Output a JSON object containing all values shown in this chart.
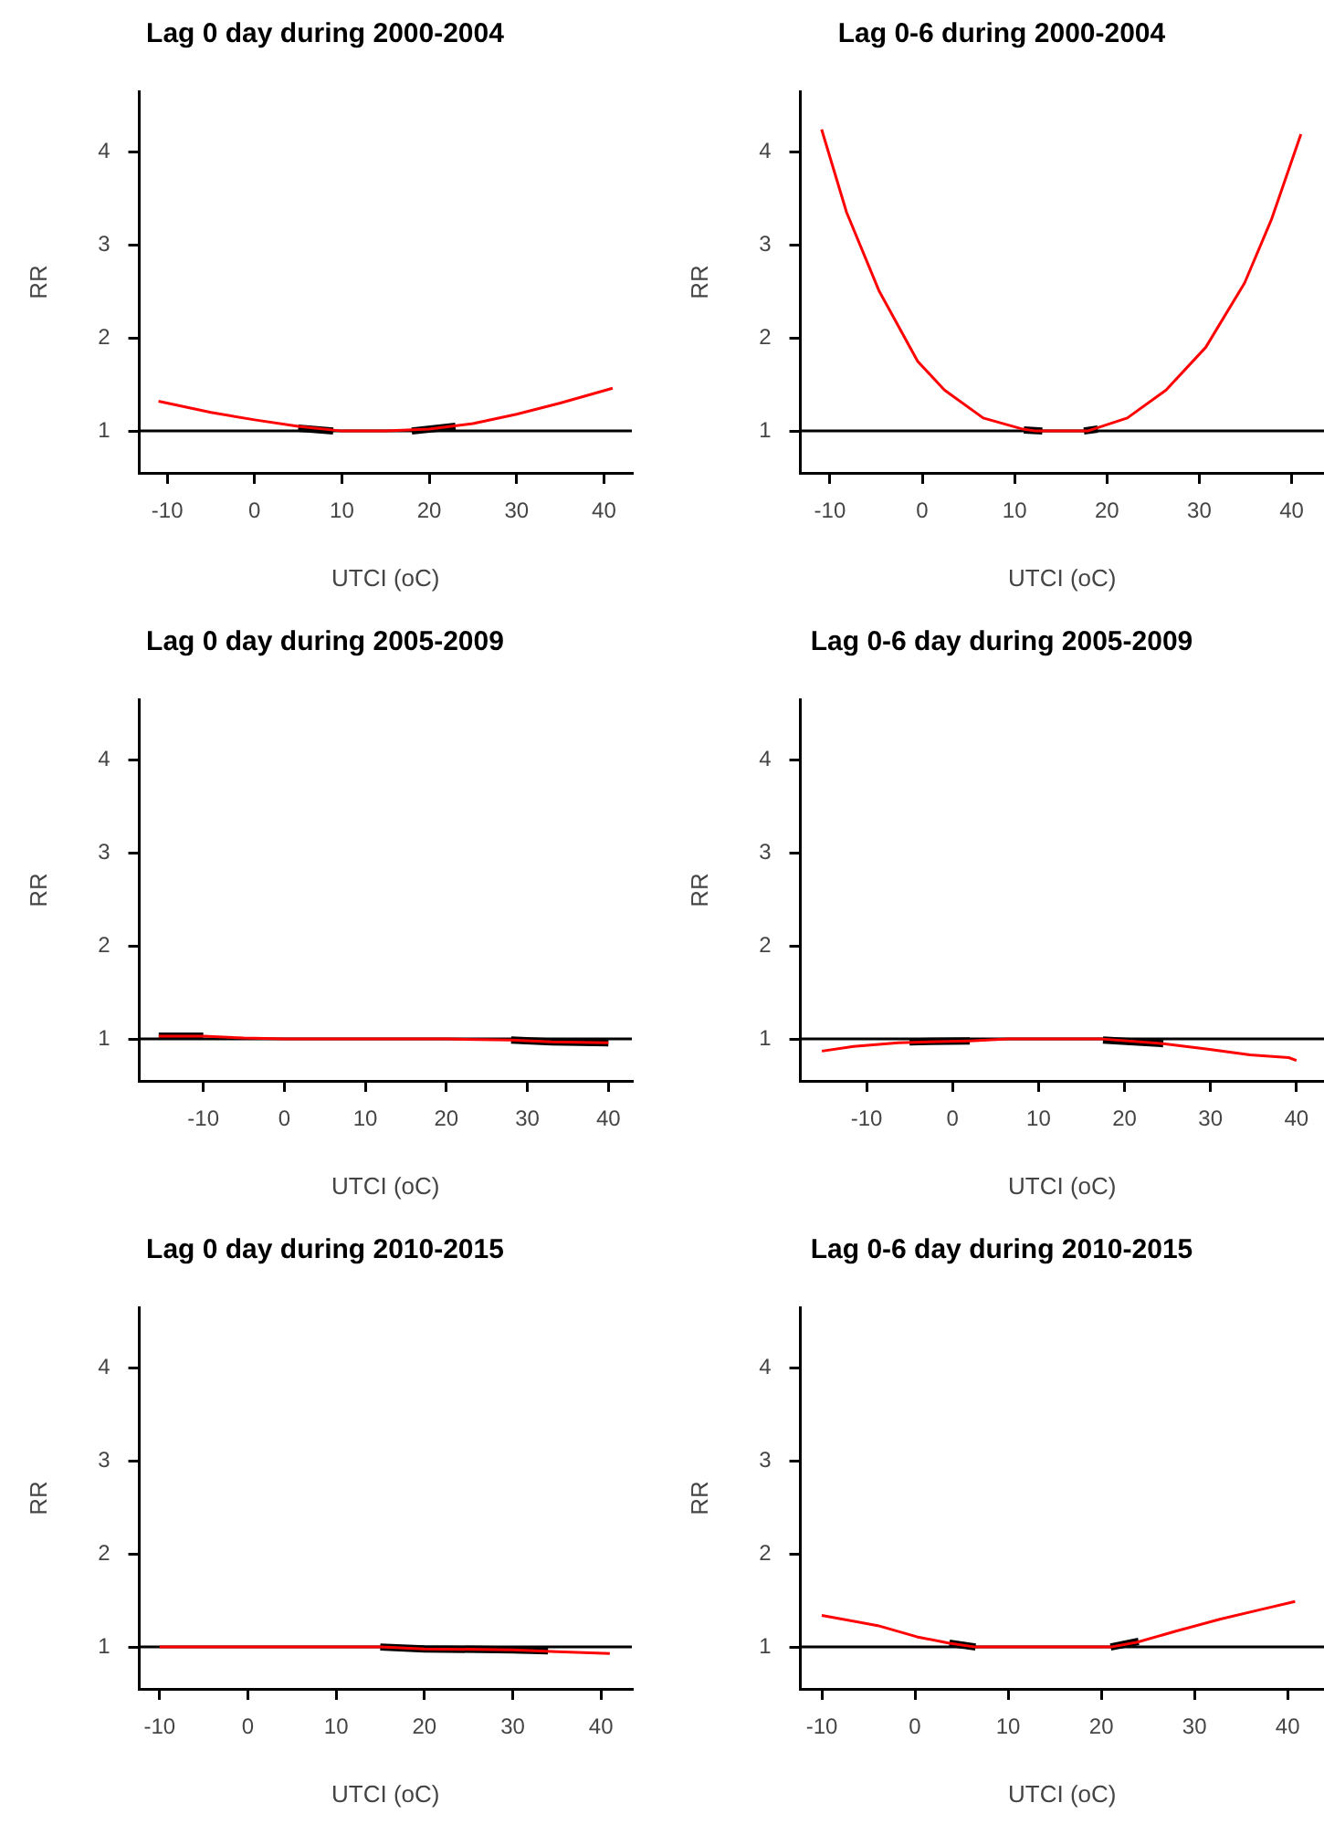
{
  "chart_data": [
    {
      "type": "line",
      "title": "Lag 0 day during 2000-2004",
      "xlabel": "UTCI (oC)",
      "ylabel": "RR",
      "xlim": [
        -13.2,
        43.2
      ],
      "ylim": [
        0.55,
        4.65
      ],
      "xticks": [
        -10,
        0,
        10,
        20,
        30,
        40
      ],
      "yticks": [
        1,
        2,
        3,
        4
      ],
      "grid": false,
      "legend": false,
      "marker": "none",
      "line_style": "solid",
      "ref_lines": [
        {
          "axis": "y",
          "value": 1,
          "color": "#000000"
        }
      ],
      "series": [
        {
          "color": "#ff0000",
          "x": [
            -11,
            -5,
            0,
            5,
            10,
            15,
            20,
            25,
            30,
            35,
            41
          ],
          "values": [
            1.32,
            1.2,
            1.12,
            1.05,
            1.0,
            1.0,
            1.02,
            1.08,
            1.18,
            1.3,
            1.46
          ]
        },
        {
          "color": "#000000",
          "x": [
            5,
            9
          ],
          "values": [
            1.03,
            1.0
          ]
        },
        {
          "color": "#000000",
          "x": [
            18,
            23
          ],
          "values": [
            1.0,
            1.05
          ]
        }
      ]
    },
    {
      "type": "line",
      "title": "Lag 0-6 during 2000-2004",
      "xlabel": "UTCI (oC)",
      "ylabel": "RR",
      "xlim": [
        -13.2,
        43.5
      ],
      "ylim": [
        0.55,
        4.65
      ],
      "xticks": [
        -10,
        0,
        10,
        20,
        30,
        40
      ],
      "yticks": [
        1,
        2,
        3,
        4
      ],
      "grid": false,
      "legend": false,
      "marker": "none",
      "line_style": "solid",
      "ref_lines": [
        {
          "axis": "y",
          "value": 1,
          "color": "#000000"
        }
      ],
      "series": [
        {
          "color": "#ff0000",
          "x": [
            -10.9,
            -8.2,
            -4.7,
            -0.5,
            2.4,
            6.6,
            10.9,
            12.3,
            15,
            17.9,
            22.2,
            26.4,
            30.7,
            34.9,
            37.8,
            41
          ],
          "values": [
            4.24,
            3.35,
            2.51,
            1.75,
            1.44,
            1.14,
            1.02,
            1.0,
            1.0,
            1.0,
            1.14,
            1.44,
            1.9,
            2.59,
            3.27,
            4.19
          ]
        },
        {
          "color": "#000000",
          "x": [
            11,
            13
          ],
          "values": [
            1.01,
            1.0
          ]
        },
        {
          "color": "#000000",
          "x": [
            17.5,
            19
          ],
          "values": [
            1.0,
            1.02
          ]
        }
      ]
    },
    {
      "type": "line",
      "title": "Lag 0 day during 2005-2009",
      "xlabel": "UTCI (oC)",
      "ylabel": "RR",
      "xlim": [
        -17.9,
        42.9
      ],
      "ylim": [
        0.55,
        4.65
      ],
      "xticks": [
        -10,
        0,
        10,
        20,
        30,
        40
      ],
      "yticks": [
        1,
        2,
        3,
        4
      ],
      "grid": false,
      "legend": false,
      "marker": "none",
      "line_style": "solid",
      "ref_lines": [
        {
          "axis": "y",
          "value": 1,
          "color": "#000000"
        }
      ],
      "series": [
        {
          "color": "#ff0000",
          "x": [
            -15.5,
            -10,
            -5,
            0,
            10,
            20,
            28,
            33,
            40
          ],
          "values": [
            1.03,
            1.03,
            1.01,
            1.0,
            1.0,
            1.0,
            0.99,
            0.97,
            0.96
          ]
        },
        {
          "color": "#000000",
          "x": [
            -15.5,
            -10
          ],
          "values": [
            1.03,
            1.03
          ]
        },
        {
          "color": "#000000",
          "x": [
            28,
            33,
            40
          ],
          "values": [
            0.99,
            0.97,
            0.96
          ]
        }
      ]
    },
    {
      "type": "line",
      "title": "Lag 0-6 day during 2005-2009",
      "xlabel": "UTCI (oC)",
      "ylabel": "RR",
      "xlim": [
        -17.7,
        43.2
      ],
      "ylim": [
        0.55,
        4.65
      ],
      "xticks": [
        -10,
        0,
        10,
        20,
        30,
        40
      ],
      "yticks": [
        1,
        2,
        3,
        4
      ],
      "grid": false,
      "legend": false,
      "marker": "none",
      "line_style": "solid",
      "ref_lines": [
        {
          "axis": "y",
          "value": 1,
          "color": "#000000"
        }
      ],
      "series": [
        {
          "color": "#ff0000",
          "x": [
            -15.2,
            -11.5,
            -6.3,
            2,
            6.5,
            17.4,
            24.5,
            29.7,
            34.6,
            39.1,
            40
          ],
          "values": [
            0.87,
            0.92,
            0.96,
            0.98,
            1.0,
            1.0,
            0.95,
            0.89,
            0.83,
            0.8,
            0.77
          ]
        },
        {
          "color": "#000000",
          "x": [
            -5,
            2
          ],
          "values": [
            0.97,
            0.98
          ]
        },
        {
          "color": "#000000",
          "x": [
            17.5,
            24.5
          ],
          "values": [
            0.99,
            0.95
          ]
        }
      ]
    },
    {
      "type": "line",
      "title": "Lag 0 day during 2010-2015",
      "xlabel": "UTCI (oC)",
      "ylabel": "RR",
      "xlim": [
        -12.3,
        43.5
      ],
      "ylim": [
        0.55,
        4.65
      ],
      "xticks": [
        -10,
        0,
        10,
        20,
        30,
        40
      ],
      "yticks": [
        1,
        2,
        3,
        4
      ],
      "grid": false,
      "legend": false,
      "marker": "none",
      "line_style": "solid",
      "ref_lines": [
        {
          "axis": "y",
          "value": 1,
          "color": "#000000"
        }
      ],
      "series": [
        {
          "color": "#ff0000",
          "x": [
            -10,
            0,
            10,
            15,
            20,
            30,
            35,
            41
          ],
          "values": [
            1.0,
            1.0,
            1.0,
            1.0,
            0.98,
            0.97,
            0.95,
            0.93
          ]
        },
        {
          "color": "#000000",
          "x": [
            15,
            20,
            30,
            34
          ],
          "values": [
            1.0,
            0.98,
            0.97,
            0.96
          ]
        }
      ]
    },
    {
      "type": "line",
      "title": "Lag 0-6 day during 2010-2015",
      "xlabel": "UTCI (oC)",
      "ylabel": "RR",
      "xlim": [
        -12.3,
        43.9
      ],
      "ylim": [
        0.55,
        4.65
      ],
      "xticks": [
        -10,
        0,
        10,
        20,
        30,
        40
      ],
      "yticks": [
        1,
        2,
        3,
        4
      ],
      "grid": false,
      "legend": false,
      "marker": "none",
      "line_style": "solid",
      "ref_lines": [
        {
          "axis": "y",
          "value": 1,
          "color": "#000000"
        }
      ],
      "series": [
        {
          "color": "#ff0000",
          "x": [
            -10,
            -4,
            0.2,
            3.7,
            6.5,
            21,
            23.8,
            28,
            32.8,
            37,
            40.8
          ],
          "values": [
            1.34,
            1.23,
            1.11,
            1.04,
            1.0,
            1.0,
            1.05,
            1.17,
            1.3,
            1.4,
            1.49
          ]
        },
        {
          "color": "#000000",
          "x": [
            3.7,
            6.5
          ],
          "values": [
            1.04,
            1.0
          ]
        },
        {
          "color": "#000000",
          "x": [
            21,
            24
          ],
          "values": [
            1.0,
            1.06
          ]
        }
      ]
    }
  ]
}
